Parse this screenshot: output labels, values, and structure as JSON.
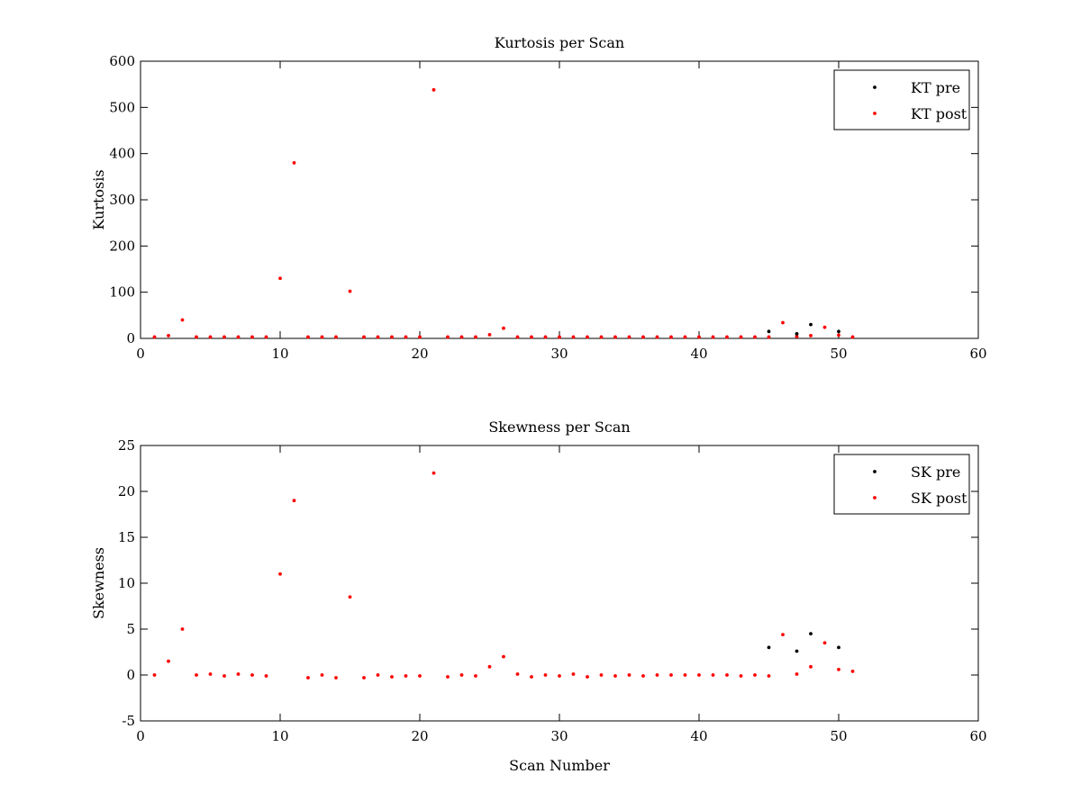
{
  "chart_data": [
    {
      "type": "scatter",
      "title": "Kurtosis per Scan",
      "xlabel": "",
      "ylabel": "Kurtosis",
      "xlim": [
        0,
        60
      ],
      "ylim": [
        0,
        600
      ],
      "xticks": [
        0,
        10,
        20,
        30,
        40,
        50,
        60
      ],
      "yticks": [
        0,
        100,
        200,
        300,
        400,
        500,
        600
      ],
      "grid": false,
      "legend_position": "top-right",
      "series": [
        {
          "name": "KT pre",
          "color": "#000000",
          "points": [
            [
              45,
              15
            ],
            [
              47,
              10
            ],
            [
              48,
              30
            ],
            [
              50,
              15
            ]
          ]
        },
        {
          "name": "KT post",
          "color": "#ff0000",
          "points": [
            [
              1,
              3
            ],
            [
              2,
              6
            ],
            [
              3,
              40
            ],
            [
              4,
              3
            ],
            [
              5,
              3
            ],
            [
              6,
              3
            ],
            [
              7,
              3
            ],
            [
              8,
              3
            ],
            [
              9,
              3
            ],
            [
              10,
              130
            ],
            [
              11,
              380
            ],
            [
              12,
              3
            ],
            [
              13,
              3
            ],
            [
              14,
              3
            ],
            [
              15,
              102
            ],
            [
              16,
              3
            ],
            [
              17,
              3
            ],
            [
              18,
              3
            ],
            [
              19,
              3
            ],
            [
              20,
              3
            ],
            [
              21,
              538
            ],
            [
              22,
              3
            ],
            [
              23,
              3
            ],
            [
              24,
              3
            ],
            [
              25,
              8
            ],
            [
              26,
              22
            ],
            [
              27,
              3
            ],
            [
              28,
              3
            ],
            [
              29,
              3
            ],
            [
              30,
              3
            ],
            [
              31,
              3
            ],
            [
              32,
              3
            ],
            [
              33,
              3
            ],
            [
              34,
              3
            ],
            [
              35,
              3
            ],
            [
              36,
              3
            ],
            [
              37,
              3
            ],
            [
              38,
              3
            ],
            [
              39,
              3
            ],
            [
              40,
              3
            ],
            [
              41,
              3
            ],
            [
              42,
              3
            ],
            [
              43,
              3
            ],
            [
              44,
              3
            ],
            [
              45,
              3
            ],
            [
              46,
              34
            ],
            [
              47,
              4
            ],
            [
              48,
              6
            ],
            [
              49,
              24
            ],
            [
              50,
              7
            ],
            [
              51,
              3
            ]
          ]
        }
      ]
    },
    {
      "type": "scatter",
      "title": "Skewness per Scan",
      "xlabel": "Scan Number",
      "ylabel": "Skewness",
      "xlim": [
        0,
        60
      ],
      "ylim": [
        -5,
        25
      ],
      "xticks": [
        0,
        10,
        20,
        30,
        40,
        50,
        60
      ],
      "yticks": [
        -5,
        0,
        5,
        10,
        15,
        20,
        25
      ],
      "grid": false,
      "legend_position": "top-right",
      "series": [
        {
          "name": "SK pre",
          "color": "#000000",
          "points": [
            [
              45,
              3.0
            ],
            [
              47,
              2.6
            ],
            [
              48,
              4.5
            ],
            [
              50,
              3.0
            ]
          ]
        },
        {
          "name": "SK post",
          "color": "#ff0000",
          "points": [
            [
              1,
              0.0
            ],
            [
              2,
              1.5
            ],
            [
              3,
              5.0
            ],
            [
              4,
              0.0
            ],
            [
              5,
              0.1
            ],
            [
              6,
              -0.1
            ],
            [
              7,
              0.1
            ],
            [
              8,
              0.0
            ],
            [
              9,
              -0.1
            ],
            [
              10,
              11.0
            ],
            [
              11,
              19.0
            ],
            [
              12,
              -0.3
            ],
            [
              13,
              0.0
            ],
            [
              14,
              -0.3
            ],
            [
              15,
              8.5
            ],
            [
              16,
              -0.3
            ],
            [
              17,
              0.0
            ],
            [
              18,
              -0.2
            ],
            [
              19,
              -0.1
            ],
            [
              20,
              -0.1
            ],
            [
              21,
              22.0
            ],
            [
              22,
              -0.2
            ],
            [
              23,
              0.0
            ],
            [
              24,
              -0.1
            ],
            [
              25,
              0.9
            ],
            [
              26,
              2.0
            ],
            [
              27,
              0.1
            ],
            [
              28,
              -0.2
            ],
            [
              29,
              0.0
            ],
            [
              30,
              -0.1
            ],
            [
              31,
              0.1
            ],
            [
              32,
              -0.2
            ],
            [
              33,
              0.0
            ],
            [
              34,
              -0.1
            ],
            [
              35,
              0.0
            ],
            [
              36,
              -0.1
            ],
            [
              37,
              0.0
            ],
            [
              38,
              0.0
            ],
            [
              39,
              0.0
            ],
            [
              40,
              0.0
            ],
            [
              41,
              0.0
            ],
            [
              42,
              0.0
            ],
            [
              43,
              -0.1
            ],
            [
              44,
              0.0
            ],
            [
              45,
              -0.1
            ],
            [
              46,
              4.4
            ],
            [
              47,
              0.1
            ],
            [
              48,
              0.9
            ],
            [
              49,
              3.5
            ],
            [
              50,
              0.6
            ],
            [
              51,
              0.4
            ]
          ]
        }
      ]
    }
  ]
}
